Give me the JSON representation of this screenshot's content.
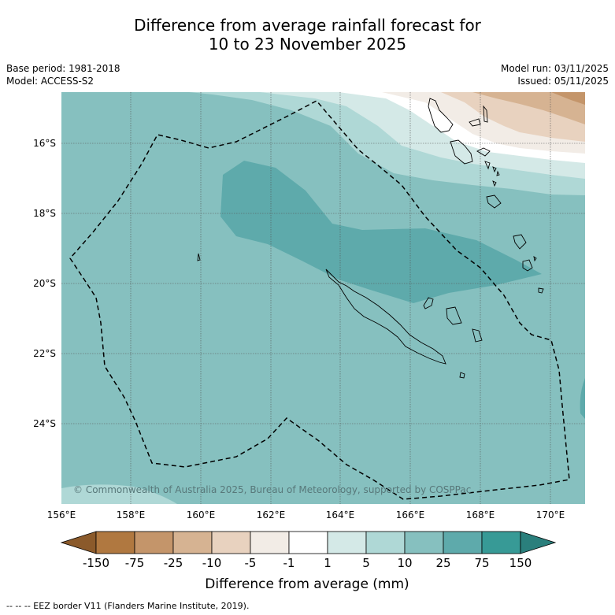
{
  "title": {
    "line1": "Difference from average rainfall forecast for",
    "line2": "10 to 23 November 2025"
  },
  "meta": {
    "base_period": "Base period: 1981-2018",
    "model": "Model: ACCESS-S2",
    "model_run": "Model run: 03/11/2025",
    "issued": "Issued: 05/11/2025"
  },
  "map": {
    "lat_labels": [
      "16°S",
      "18°S",
      "20°S",
      "22°S",
      "24°S"
    ],
    "lon_labels": [
      "156°E",
      "158°E",
      "160°E",
      "162°E",
      "164°E",
      "166°E",
      "168°E",
      "170°E"
    ],
    "copyright": "© Commonwealth of Australia 2025, Bureau of Meteorology, supported by COSPPac"
  },
  "legend": {
    "ticks": [
      "-150",
      "-75",
      "-25",
      "-10",
      "-5",
      "-1",
      "1",
      "5",
      "10",
      "25",
      "75",
      "150"
    ],
    "colors": [
      "#8b5a2b",
      "#b07840",
      "#c4956a",
      "#d6b392",
      "#e8d2bf",
      "#f2ece6",
      "#ffffff",
      "#d4e9e7",
      "#afd8d6",
      "#86c0bf",
      "#5eaaab",
      "#379a96",
      "#2a7f7c"
    ],
    "title": "Difference from average (mm)"
  },
  "footnote": "-- -- -- EEZ border V11 (Flanders Marine Institute, 2019)."
}
